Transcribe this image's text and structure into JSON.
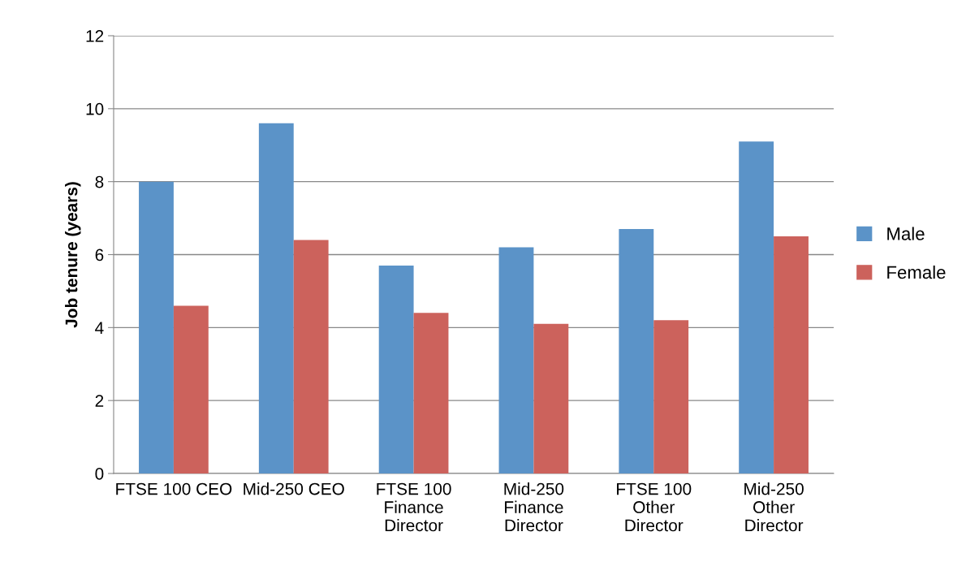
{
  "chart_data": {
    "type": "bar",
    "ylabel": "Job tenure (years)",
    "categories": [
      "FTSE 100 CEO",
      "Mid-250 CEO",
      "FTSE 100\nFinance\nDirector",
      "Mid-250\nFinance\nDirector",
      "FTSE 100\nOther\nDirector",
      "Mid-250\nOther\nDirector"
    ],
    "series": [
      {
        "name": "Male",
        "color": "#5b93c8",
        "values": [
          8.0,
          9.6,
          5.7,
          6.2,
          6.7,
          9.1
        ]
      },
      {
        "name": "Female",
        "color": "#cc625c",
        "values": [
          4.6,
          6.4,
          4.4,
          4.1,
          4.2,
          6.5
        ]
      }
    ],
    "ylim": [
      0,
      12
    ],
    "yticks": [
      0,
      2,
      4,
      6,
      8,
      10,
      12
    ],
    "grid": "y",
    "legend": "right"
  }
}
